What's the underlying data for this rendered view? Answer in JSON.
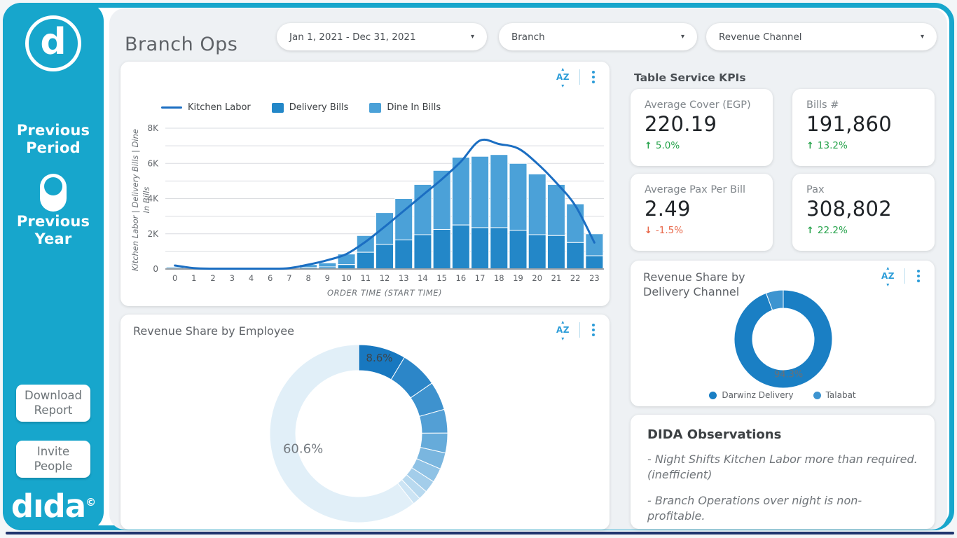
{
  "colors": {
    "brand_cyan": "#17a6cc",
    "accent_blue": "#2b9cd8",
    "positive_green": "#27a34c",
    "negative_orange": "#e8684a",
    "navy_line": "#20356e"
  },
  "icons": {
    "sort_label": "AZ",
    "caret": "▾"
  },
  "sidebar": {
    "logo_letter": "d",
    "toggle_top_label": "Previous Period",
    "toggle_bottom_label": "Previous Year",
    "download_button": "Download Report",
    "invite_button": "Invite People",
    "brand": "dıda",
    "brand_sup": "©"
  },
  "header": {
    "title": "Branch Ops",
    "filters": [
      {
        "label": "Jan 1, 2021 - Dec 31, 2021"
      },
      {
        "label": "Branch"
      },
      {
        "label": "Revenue Channel"
      }
    ]
  },
  "kpis": {
    "section_title": "Table Service KPIs",
    "cards": [
      {
        "label": "Average Cover (EGP)",
        "value": "220.19",
        "arrow": "↑",
        "delta": "5.0%",
        "direction": "up"
      },
      {
        "label": "Bills #",
        "value": "191,860",
        "arrow": "↑",
        "delta": "13.2%",
        "direction": "up"
      },
      {
        "label": "Average Pax Per Bill",
        "value": "2.49",
        "arrow": "↓",
        "delta": "-1.5%",
        "direction": "down"
      },
      {
        "label": "Pax",
        "value": "308,802",
        "arrow": "↑",
        "delta": "22.2%",
        "direction": "up"
      }
    ]
  },
  "observations": {
    "title": "DIDA Observations",
    "items": [
      "- Night Shifts Kitchen Labor more than required. (inefficient)",
      "- Branch Operations over night is non-profitable."
    ]
  },
  "chart_data": [
    {
      "id": "orders-by-hour",
      "type": "bar",
      "subtype": "stacked-bars-with-line",
      "categories": [
        "0",
        "1",
        "2",
        "3",
        "4",
        "6",
        "7",
        "8",
        "9",
        "10",
        "11",
        "12",
        "13",
        "14",
        "15",
        "16",
        "17",
        "18",
        "19",
        "20",
        "21",
        "22",
        "23"
      ],
      "xlabel": "ORDER TIME (START TIME)",
      "ylabel": "Kitchen Labor | Delivery Bills | Dine In Bills",
      "ylim": [
        0,
        8000
      ],
      "yticks": [
        0,
        2000,
        4000,
        6000,
        8000
      ],
      "ytick_labels": [
        "0",
        "2K",
        "4K",
        "6K",
        "8K"
      ],
      "grid": true,
      "legend_position": "top",
      "series": [
        {
          "name": "Kitchen Labor",
          "type": "line",
          "color": "#1b6ec2",
          "values": [
            200,
            50,
            20,
            20,
            20,
            20,
            50,
            250,
            500,
            850,
            1550,
            2400,
            3300,
            4200,
            5100,
            6100,
            7300,
            7100,
            6850,
            6000,
            4900,
            3600,
            1500
          ]
        },
        {
          "name": "Delivery Bills",
          "type": "bar",
          "color": "#2387c8",
          "values": [
            80,
            20,
            10,
            10,
            10,
            10,
            20,
            100,
            120,
            250,
            950,
            1400,
            1650,
            1950,
            2250,
            2500,
            2350,
            2350,
            2200,
            1950,
            1900,
            1500,
            750
          ]
        },
        {
          "name": "Dine In Bills",
          "type": "bar",
          "color": "#4ba1d8",
          "values": [
            50,
            20,
            10,
            10,
            10,
            10,
            20,
            150,
            230,
            600,
            950,
            1800,
            2350,
            2850,
            3350,
            3850,
            4050,
            4150,
            3800,
            3450,
            2900,
            2200,
            1250
          ]
        }
      ]
    },
    {
      "id": "revenue-share-by-employee",
      "type": "pie",
      "title": "Revenue Share by Employee",
      "slices": [
        {
          "value": 8.6,
          "color": "#1878c0",
          "label": "8.6%",
          "label_angle_deg": 16,
          "label_radius": 107,
          "label_color": "#3f4448",
          "label_size": 15
        },
        {
          "value": 6.8,
          "color": "#2c86c8"
        },
        {
          "value": 5.2,
          "color": "#3e92ce"
        },
        {
          "value": 4.3,
          "color": "#539fd5"
        },
        {
          "value": 3.6,
          "color": "#66abda"
        },
        {
          "value": 3.0,
          "color": "#7ab6df"
        },
        {
          "value": 2.6,
          "color": "#8fc2e5"
        },
        {
          "value": 2.2,
          "color": "#a3cdea"
        },
        {
          "value": 1.7,
          "color": "#b8d9ef"
        },
        {
          "value": 1.4,
          "color": "#cce4f4"
        },
        {
          "value": 60.6,
          "color": "#e1eff8",
          "label": "60.6%",
          "label_angle_deg": 251,
          "label_radius": 84,
          "label_color": "#747a80",
          "label_size": 18
        }
      ]
    },
    {
      "id": "revenue-share-by-delivery-channel",
      "type": "pie",
      "title": "Revenue Share by Delivery Channel",
      "slices": [
        {
          "name": "Darwinz Delivery",
          "value": 94.3,
          "color": "#1a7fc4",
          "label": "94.3%",
          "label_angle_deg": 172,
          "label_radius": 55,
          "label_color": "#6b7075",
          "label_size": 13
        },
        {
          "name": "Talabat",
          "value": 5.7,
          "color": "#3d94d0"
        }
      ],
      "legend_position": "bottom"
    }
  ]
}
